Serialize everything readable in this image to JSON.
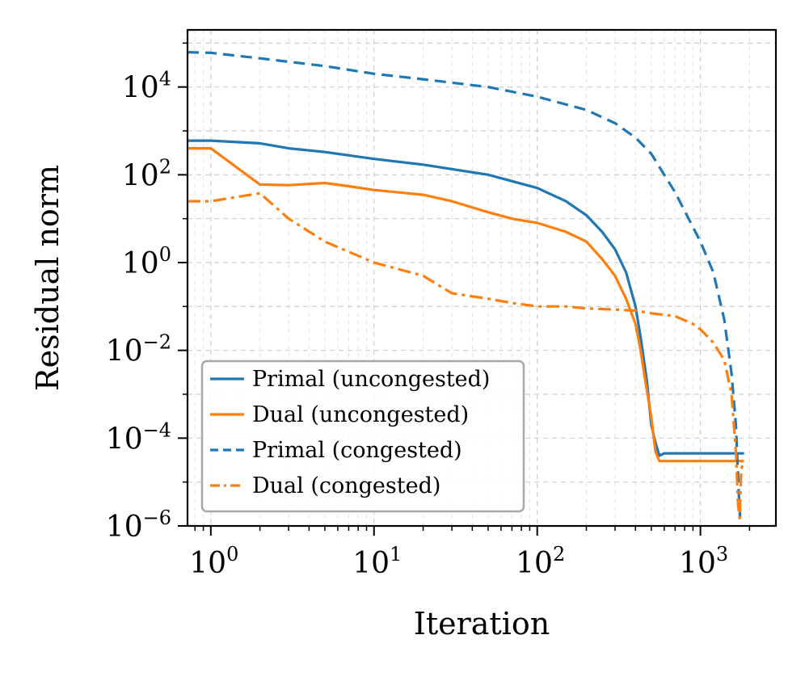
{
  "chart_data": {
    "type": "line",
    "title": "",
    "xlabel": "Iteration",
    "ylabel": "Residual norm",
    "xscale": "log",
    "yscale": "log",
    "xlim": [
      0.72,
      2900
    ],
    "ylim": [
      1e-06,
      200000.0
    ],
    "grid": true,
    "legend_position": "lower-left",
    "x_ticks": [
      {
        "value": 1,
        "base": "10",
        "exp": "0"
      },
      {
        "value": 10,
        "base": "10",
        "exp": "1"
      },
      {
        "value": 100,
        "base": "10",
        "exp": "2"
      },
      {
        "value": 1000,
        "base": "10",
        "exp": "3"
      }
    ],
    "y_ticks": [
      {
        "value": 1e-06,
        "base": "10",
        "exp": "−6"
      },
      {
        "value": 0.0001,
        "base": "10",
        "exp": "−4"
      },
      {
        "value": 0.01,
        "base": "10",
        "exp": "−2"
      },
      {
        "value": 1,
        "base": "10",
        "exp": "0"
      },
      {
        "value": 100,
        "base": "10",
        "exp": "2"
      },
      {
        "value": 10000,
        "base": "10",
        "exp": "4"
      }
    ],
    "series": [
      {
        "name": "Primal (uncongested)",
        "color": "#1f77b4",
        "style": "solid",
        "points": [
          [
            0.72,
            600
          ],
          [
            1,
            600
          ],
          [
            2,
            520
          ],
          [
            3,
            400
          ],
          [
            5,
            330
          ],
          [
            10,
            230
          ],
          [
            20,
            170
          ],
          [
            50,
            100
          ],
          [
            100,
            50
          ],
          [
            150,
            25
          ],
          [
            200,
            12
          ],
          [
            250,
            5
          ],
          [
            300,
            2
          ],
          [
            350,
            0.6
          ],
          [
            400,
            0.1
          ],
          [
            430,
            0.02
          ],
          [
            470,
            0.002
          ],
          [
            500,
            0.0002
          ],
          [
            530,
            8e-05
          ],
          [
            560,
            4e-05
          ],
          [
            600,
            4.5e-05
          ],
          [
            1000,
            4.5e-05
          ],
          [
            1850,
            4.5e-05
          ]
        ]
      },
      {
        "name": "Dual (uncongested)",
        "color": "#ff7f0e",
        "style": "solid",
        "points": [
          [
            0.72,
            400
          ],
          [
            1,
            400
          ],
          [
            2,
            60
          ],
          [
            3,
            58
          ],
          [
            5,
            65
          ],
          [
            7,
            55
          ],
          [
            10,
            45
          ],
          [
            20,
            35
          ],
          [
            30,
            25
          ],
          [
            50,
            14
          ],
          [
            70,
            10
          ],
          [
            100,
            8
          ],
          [
            150,
            5
          ],
          [
            200,
            3
          ],
          [
            250,
            1.2
          ],
          [
            300,
            0.5
          ],
          [
            350,
            0.15
          ],
          [
            400,
            0.04
          ],
          [
            430,
            0.01
          ],
          [
            460,
            0.002
          ],
          [
            500,
            0.0003
          ],
          [
            530,
            5e-05
          ],
          [
            560,
            3e-05
          ],
          [
            700,
            3e-05
          ],
          [
            1000,
            3e-05
          ],
          [
            1850,
            3e-05
          ]
        ]
      },
      {
        "name": "Primal (congested)",
        "color": "#1f77b4",
        "style": "dashed",
        "points": [
          [
            0.72,
            62000
          ],
          [
            1,
            60000
          ],
          [
            2,
            45000
          ],
          [
            5,
            30000
          ],
          [
            10,
            20000
          ],
          [
            20,
            15000
          ],
          [
            50,
            10000
          ],
          [
            100,
            6000
          ],
          [
            200,
            3000
          ],
          [
            300,
            1500
          ],
          [
            400,
            700
          ],
          [
            500,
            300
          ],
          [
            600,
            100
          ],
          [
            700,
            40
          ],
          [
            800,
            15
          ],
          [
            1000,
            3
          ],
          [
            1200,
            0.6
          ],
          [
            1400,
            0.05
          ],
          [
            1550,
            0.003
          ],
          [
            1650,
            0.0002
          ],
          [
            1720,
            5e-06
          ],
          [
            1750,
            1.5e-06
          ]
        ]
      },
      {
        "name": "Dual (congested)",
        "color": "#ff7f0e",
        "style": "dashdot",
        "points": [
          [
            0.72,
            25
          ],
          [
            1,
            25
          ],
          [
            2,
            38
          ],
          [
            3,
            10
          ],
          [
            5,
            3
          ],
          [
            10,
            1
          ],
          [
            20,
            0.5
          ],
          [
            30,
            0.2
          ],
          [
            50,
            0.15
          ],
          [
            70,
            0.12
          ],
          [
            100,
            0.1
          ],
          [
            150,
            0.1
          ],
          [
            200,
            0.09
          ],
          [
            300,
            0.085
          ],
          [
            400,
            0.08
          ],
          [
            500,
            0.07
          ],
          [
            700,
            0.06
          ],
          [
            900,
            0.04
          ],
          [
            1000,
            0.03
          ],
          [
            1200,
            0.015
          ],
          [
            1400,
            0.006
          ],
          [
            1550,
            0.001
          ],
          [
            1650,
            5e-05
          ],
          [
            1700,
            3e-06
          ],
          [
            1740,
            1.5e-06
          ],
          [
            1780,
            2e-05
          ],
          [
            1850,
            3e-05
          ]
        ]
      }
    ]
  }
}
